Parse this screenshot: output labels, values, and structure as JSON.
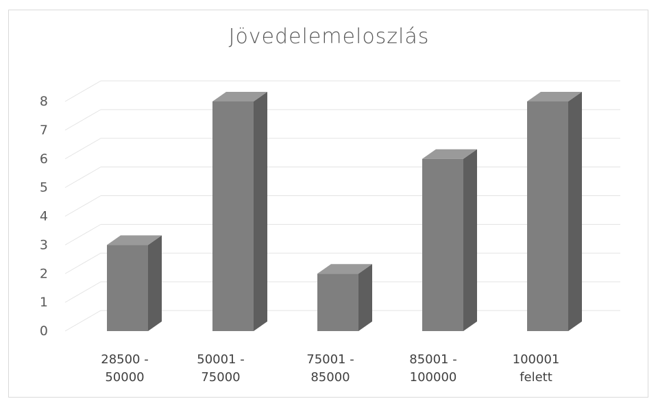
{
  "chart_data": {
    "type": "bar",
    "style": "3d-column",
    "title": "Jövedelemeloszlás",
    "xlabel": "",
    "ylabel": "",
    "categories": [
      [
        "28500 -",
        "50000"
      ],
      [
        "50001 -",
        "75000"
      ],
      [
        "75001 -",
        "85000"
      ],
      [
        "85001 -",
        "100000"
      ],
      [
        "100001",
        "felett"
      ]
    ],
    "values": [
      3,
      8,
      2,
      6,
      8
    ],
    "ylim": [
      0,
      8
    ],
    "yticks": [
      "0",
      "1",
      "2",
      "3",
      "4",
      "5",
      "6",
      "7",
      "8"
    ],
    "grid": true,
    "legend": "none",
    "colors": {
      "bar_front": "#7f7f7f",
      "bar_side": "#5e5e5e",
      "bar_top": "#9a9a9a",
      "gridline": "#e3e3e3",
      "text": "#595959"
    }
  }
}
